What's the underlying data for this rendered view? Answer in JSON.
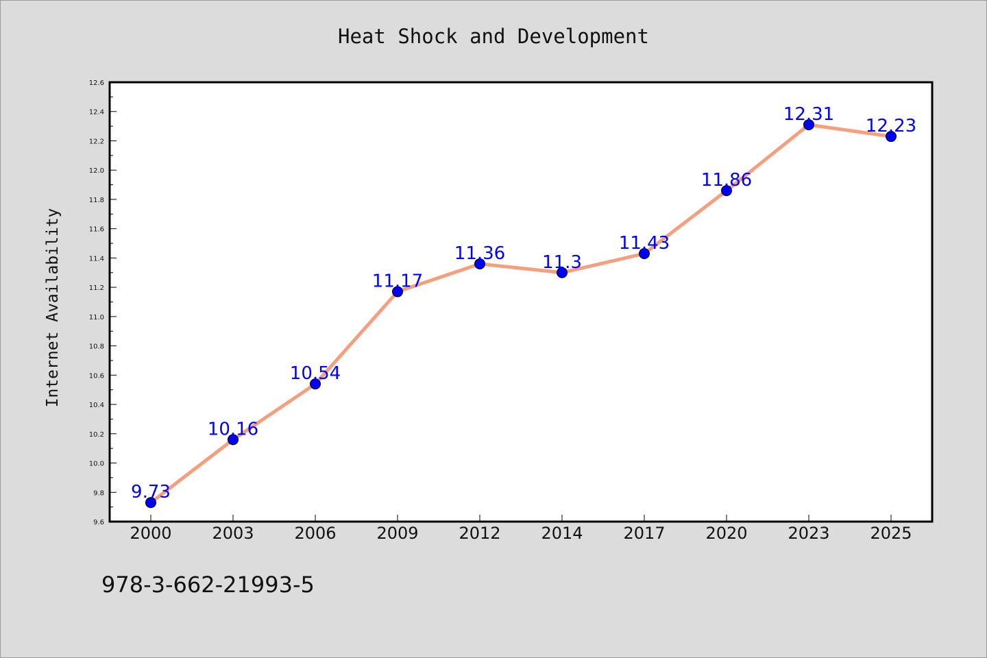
{
  "chart_data": {
    "type": "line",
    "title": "Heat Shock and Development",
    "xlabel": "",
    "ylabel": "Internet Availability",
    "categories": [
      "2000",
      "2003",
      "2006",
      "2009",
      "2012",
      "2014",
      "2017",
      "2020",
      "2023",
      "2025"
    ],
    "series": [
      {
        "values": [
          9.73,
          10.16,
          10.54,
          11.17,
          11.36,
          11.3,
          11.43,
          11.86,
          12.31,
          12.23
        ],
        "data_labels": [
          "9.73",
          "10.16",
          "10.54",
          "11.17",
          "11.36",
          "11.3",
          "11.43",
          "11.86",
          "12.31",
          "12.23"
        ]
      }
    ],
    "ylim": [
      9.6,
      12.6
    ],
    "yticks": [
      "9.6",
      "9.8",
      "10.0",
      "10.2",
      "10.4",
      "10.6",
      "10.8",
      "11.0",
      "11.2",
      "11.4",
      "11.6",
      "11.8",
      "12.0",
      "12.2",
      "12.4",
      "12.6"
    ],
    "grid": false,
    "legend": "none",
    "colors": {
      "line": "#f4a07e",
      "marker": "#0000ff",
      "data_label": "#0000ff",
      "plot_background": "#ffffff",
      "page_background": "#dcdcdc"
    }
  },
  "footer": {
    "isbn": "978-3-662-21993-5"
  }
}
